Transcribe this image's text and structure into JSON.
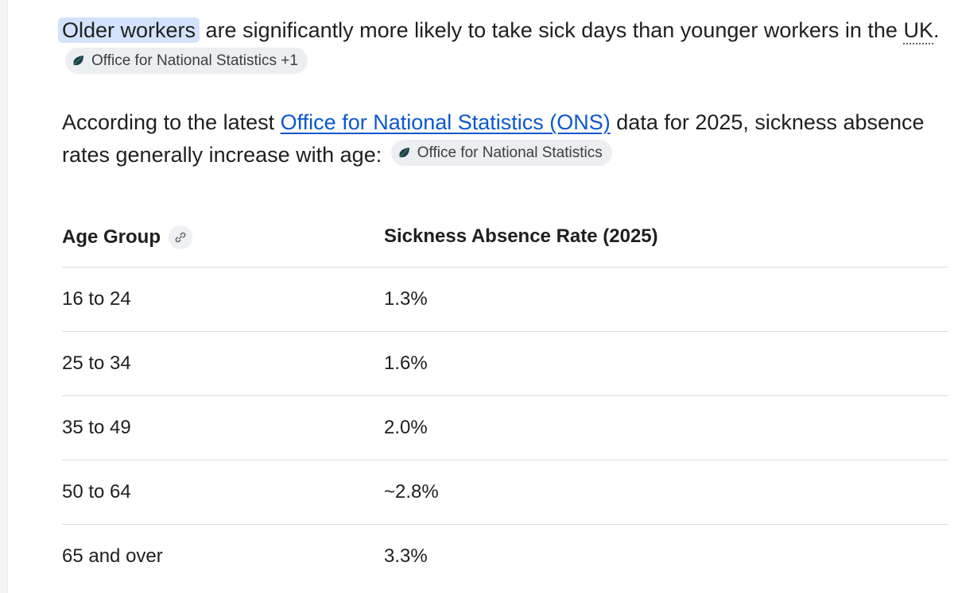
{
  "paragraph1": {
    "highlight": "Older workers",
    "text_before_uk": " are significantly more likely to take sick days than younger workers in the ",
    "uk": "UK",
    "period": ".",
    "source_chip": {
      "icon": "ons-leaf-icon",
      "label": "Office for National Statistics +1"
    }
  },
  "paragraph2": {
    "text_before_link": "According to the latest ",
    "link_text": "Office for National Statistics (ONS)",
    "text_after_link": " data for 2025, sickness absence rates generally increase with age:",
    "source_chip": {
      "icon": "ons-leaf-icon",
      "label": "Office for National Statistics"
    }
  },
  "table": {
    "headers": [
      "Age Group",
      "Sickness Absence Rate (2025)"
    ],
    "header_icon": "link-icon",
    "rows": [
      [
        "16 to 24",
        "1.3%"
      ],
      [
        "25 to 34",
        "1.6%"
      ],
      [
        "35 to 49",
        "2.0%"
      ],
      [
        "50 to 64",
        "~2.8%"
      ],
      [
        "65 and over",
        "3.3%"
      ]
    ]
  },
  "colors": {
    "link": "#0b57d0",
    "highlight": "#d3e3fd",
    "chip_bg": "#eceef1",
    "divider": "#dadce0"
  }
}
